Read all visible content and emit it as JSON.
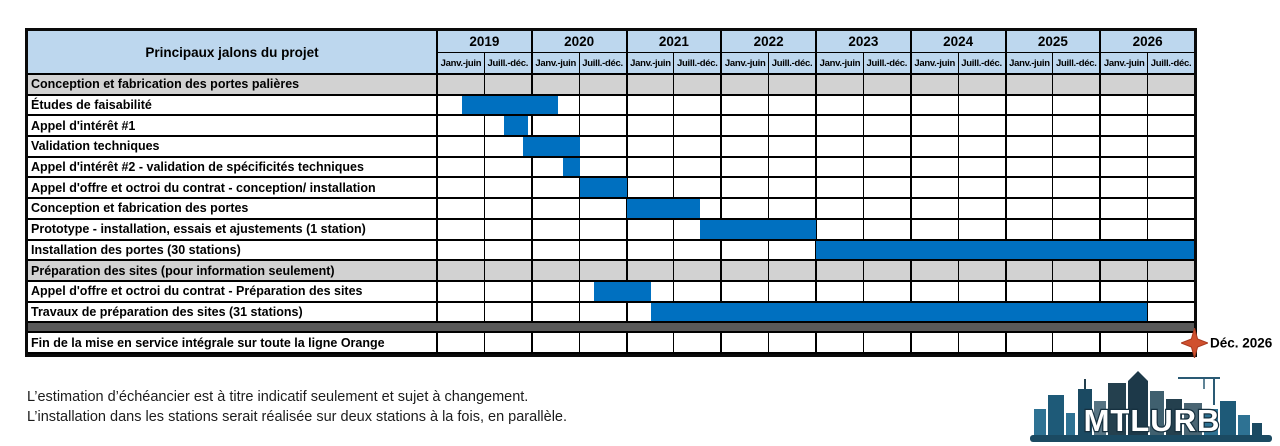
{
  "table": {
    "title": "Principaux jalons du projet",
    "years": [
      "2019",
      "2020",
      "2021",
      "2022",
      "2023",
      "2024",
      "2025",
      "2026"
    ],
    "half_labels": [
      "Janv.-juin",
      "Juill.-déc."
    ],
    "rows": [
      {
        "type": "section",
        "label": "Conception et fabrication des portes palières"
      },
      {
        "type": "task",
        "label": "Études de faisabilité",
        "bar": {
          "start": 0.5,
          "end": 2.55
        }
      },
      {
        "type": "task",
        "label": "Appel d'intérêt #1",
        "bar": {
          "start": 1.4,
          "end": 1.9
        }
      },
      {
        "type": "task",
        "label": "Validation techniques",
        "bar": {
          "start": 1.8,
          "end": 3.0
        }
      },
      {
        "type": "task",
        "label": "Appel d'intérêt #2 - validation de spécificités techniques",
        "bar": {
          "start": 2.65,
          "end": 3.0
        }
      },
      {
        "type": "task",
        "label": "Appel d'offre et octroi du contrat - conception/ installation",
        "bar": {
          "start": 3.0,
          "end": 4.0
        }
      },
      {
        "type": "task",
        "label": "Conception et fabrication des portes",
        "bar": {
          "start": 4.0,
          "end": 5.55
        }
      },
      {
        "type": "task",
        "label": "Prototype - installation, essais et ajustements (1 station)",
        "bar": {
          "start": 5.55,
          "end": 8.0
        }
      },
      {
        "type": "task",
        "label": "Installation des portes (30 stations)",
        "bar": {
          "start": 8.0,
          "end": 16.0
        }
      },
      {
        "type": "section",
        "label": "Préparation des sites (pour information seulement)"
      },
      {
        "type": "task",
        "label": "Appel d'offre et octroi du contrat - Préparation des sites",
        "bar": {
          "start": 3.3,
          "end": 4.5
        }
      },
      {
        "type": "task",
        "label": "Travaux de préparation des sites (31 stations)",
        "bar": {
          "start": 4.5,
          "end": 15.0
        }
      },
      {
        "type": "divider"
      },
      {
        "type": "task",
        "label": "Fin de la mise en service intégrale sur toute la ligne Orange",
        "milestone": {
          "position": 16,
          "label": "Déc. 2026"
        }
      }
    ]
  },
  "chart_data": {
    "type": "bar",
    "subtype": "gantt",
    "title": "Principaux jalons du projet",
    "x_axis": {
      "years": [
        2019,
        2020,
        2021,
        2022,
        2023,
        2024,
        2025,
        2026
      ],
      "subdivisions_per_year": [
        "Janv.-juin",
        "Juill.-déc."
      ],
      "unit_note": "1 unit = one half-year column; 0 = Jan 2019, 16 = Dec 2026"
    },
    "sections": [
      "Conception et fabrication des portes palières",
      "Préparation des sites (pour information seulement)"
    ],
    "tasks": [
      {
        "label": "Études de faisabilité",
        "start_unit": 0.5,
        "end_unit": 2.55,
        "approx_period": "avr. 2019 – mars 2020"
      },
      {
        "label": "Appel d'intérêt #1",
        "start_unit": 1.4,
        "end_unit": 1.9,
        "approx_period": "sept. 2019 – nov. 2019"
      },
      {
        "label": "Validation techniques",
        "start_unit": 1.8,
        "end_unit": 3.0,
        "approx_period": "nov. 2019 – juin 2020"
      },
      {
        "label": "Appel d'intérêt #2 - validation de spécificités techniques",
        "start_unit": 2.65,
        "end_unit": 3.0,
        "approx_period": "avr. 2020 – juin 2020"
      },
      {
        "label": "Appel d'offre et octroi du contrat - conception/ installation",
        "start_unit": 3.0,
        "end_unit": 4.0,
        "approx_period": "juil. 2020 – déc. 2020"
      },
      {
        "label": "Conception et fabrication des portes",
        "start_unit": 4.0,
        "end_unit": 5.55,
        "approx_period": "janv. 2021 – sept. 2021"
      },
      {
        "label": "Prototype - installation, essais et ajustements (1 station)",
        "start_unit": 5.55,
        "end_unit": 8.0,
        "approx_period": "oct. 2021 – déc. 2022"
      },
      {
        "label": "Installation des portes (30 stations)",
        "start_unit": 8.0,
        "end_unit": 16.0,
        "approx_period": "janv. 2023 – déc. 2026"
      },
      {
        "label": "Appel d'offre et octroi du contrat - Préparation des sites",
        "start_unit": 3.3,
        "end_unit": 4.5,
        "approx_period": "sept. 2020 – mars 2021"
      },
      {
        "label": "Travaux de préparation des sites (31 stations)",
        "start_unit": 4.5,
        "end_unit": 15.0,
        "approx_period": "avr. 2021 – juin 2026"
      }
    ],
    "milestones": [
      {
        "label": "Déc. 2026",
        "row": "Fin de la mise en service intégrale sur toute la ligne Orange",
        "position_unit": 16
      }
    ],
    "legend_position": "none",
    "grid": true
  },
  "milestone": {
    "label": "Déc. 2026"
  },
  "footnotes": [
    "L’estimation d’échéancier est à titre indicatif seulement et sujet à changement.",
    "L’installation dans les stations serait réalisée sur deux stations à la fois, en parallèle."
  ],
  "logo": {
    "text": "MTLURB"
  },
  "colors": {
    "header_bg": "#BDD7EE",
    "section_bg": "#D2D2D2",
    "divider_bg": "#595959",
    "bar": "#0070C0",
    "milestone_star": "#D0512E",
    "milestone_star_outline": "#A93A20",
    "border": "#0a0a0a",
    "logo_dark": "#1b4a62",
    "logo_mid": "#2e7293",
    "logo_navy": "#24404e"
  }
}
